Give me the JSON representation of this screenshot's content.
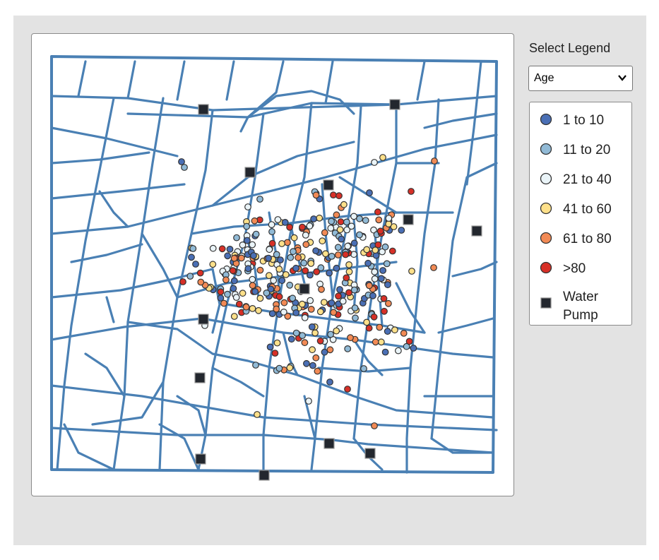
{
  "controls": {
    "select_label": "Select Legend",
    "select_value": "Age",
    "select_options": [
      "Age"
    ]
  },
  "legend": {
    "items": [
      {
        "label": "1 to 10",
        "color": "#4a6fb5",
        "shape": "circle"
      },
      {
        "label": "11 to 20",
        "color": "#91bad6",
        "shape": "circle"
      },
      {
        "label": "21 to 40",
        "color": "#eaf4f8",
        "shape": "circle"
      },
      {
        "label": "41 to 60",
        "color": "#fde08a",
        "shape": "circle"
      },
      {
        "label": "61 to 80",
        "color": "#f28a55",
        "shape": "circle"
      },
      {
        "label": ">80",
        "color": "#d73027",
        "shape": "circle"
      },
      {
        "label": "Water Pump",
        "color": "#23272e",
        "shape": "square"
      }
    ]
  },
  "colors": {
    "street": "#4a80b4",
    "pump": "#23272e",
    "panel_bg": "#e3e3e3"
  }
}
